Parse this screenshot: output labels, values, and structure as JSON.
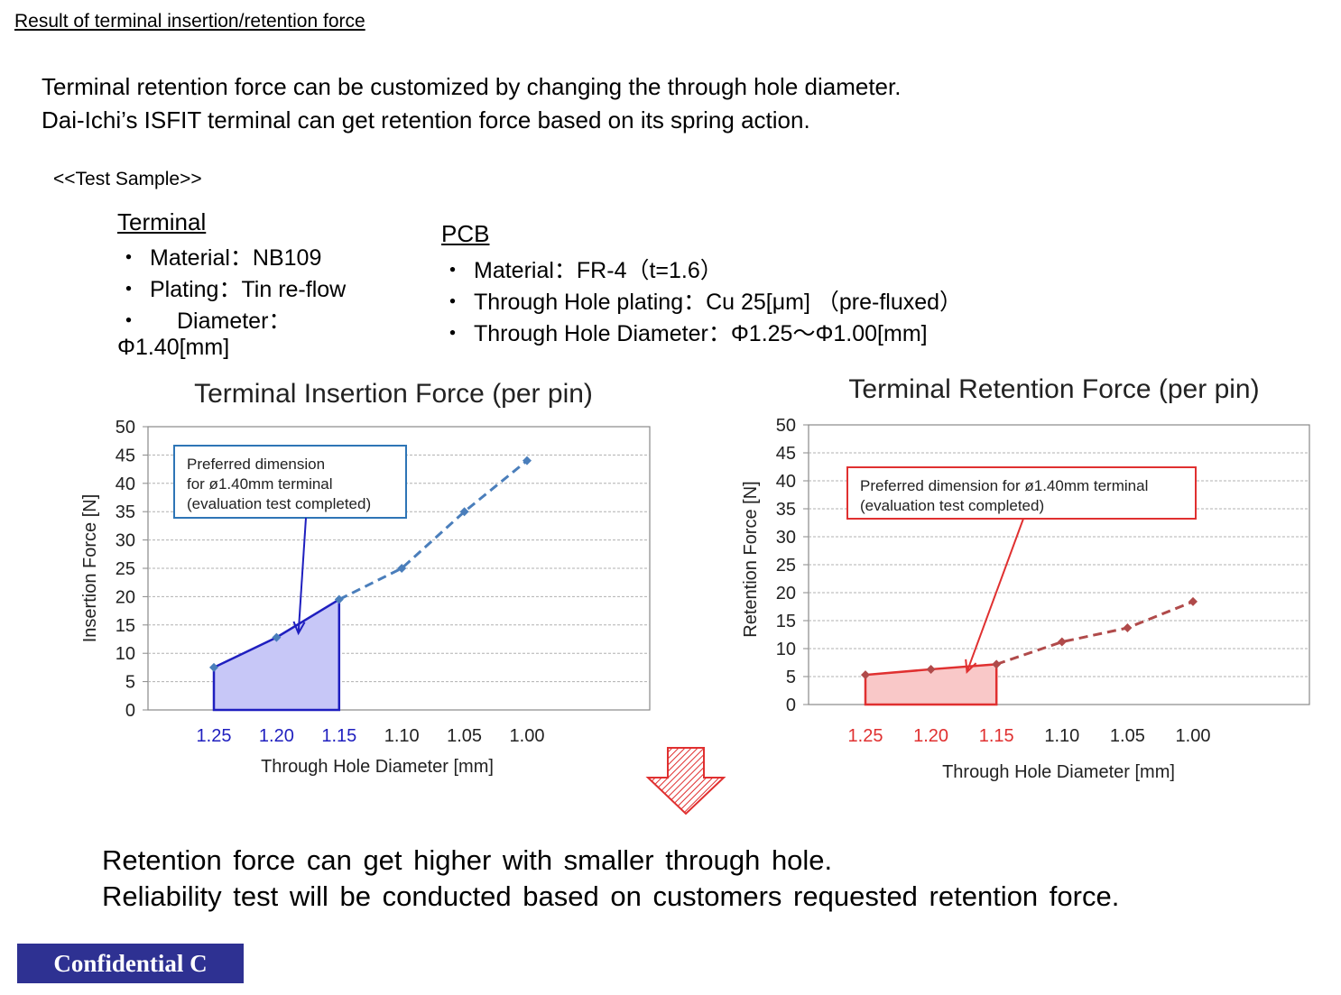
{
  "header": {
    "title": "Result of terminal insertion/retention force"
  },
  "intro": {
    "line1": "Terminal retention force can be customized by changing the through hole diameter.",
    "line2": "Dai-Ichi’s ISFIT terminal can get retention force based on its spring action."
  },
  "test_sample": {
    "label": "<<Test Sample>>",
    "terminal": {
      "heading": "Terminal",
      "bullet": "・",
      "material": "Material：NB109",
      "plating": "Plating：Tin re-flow",
      "diameter_a": "Diameter：",
      "diameter_b": "Φ1.40[mm]"
    },
    "pcb": {
      "heading": "PCB",
      "bullet": "・",
      "material": "Material：FR-4（t=1.6）",
      "plating": "Through Hole plating：Cu 25[μm] （pre-fluxed）",
      "diameter": "Through Hole Diameter：Φ1.25～Φ1.00[mm]"
    }
  },
  "chart_data": [
    {
      "type": "line",
      "title": "Terminal  Insertion  Force  (per pin)",
      "xlabel": "Through  Hole Diameter [mm]",
      "ylabel": "Insertion Force [N]",
      "categories": [
        "1.25",
        "1.20",
        "1.15",
        "1.10",
        "1.05",
        "1.00"
      ],
      "series": [
        {
          "values": [
            7.5,
            12.8,
            19.5,
            25.0,
            35.0,
            44.0
          ]
        }
      ],
      "ylim": [
        0,
        50
      ],
      "yticks": [
        "0",
        "5",
        "10",
        "15",
        "20",
        "25",
        "30",
        "35",
        "40",
        "45",
        "50"
      ],
      "grid": true,
      "highlighted_categories": [
        "1.25",
        "1.20",
        "1.15"
      ],
      "annotation": [
        "Preferred dimension",
        " for ø1.40mm terminal",
        "(evaluation test completed)"
      ],
      "colors": {
        "line": "#4a7ebb",
        "accent": "#1f1fbf",
        "fill": "#c7c7f7",
        "box": "#2e75b6"
      }
    },
    {
      "type": "line",
      "title": "Terminal  Retention  Force  (per pin)",
      "xlabel": "Through  Hole Diameter [mm]",
      "ylabel": "Retention Force [N]",
      "categories": [
        "1.25",
        "1.20",
        "1.15",
        "1.10",
        "1.05",
        "1.00"
      ],
      "series": [
        {
          "values": [
            5.3,
            6.3,
            7.2,
            11.2,
            13.7,
            18.4
          ]
        }
      ],
      "ylim": [
        0,
        50
      ],
      "yticks": [
        "0",
        "5",
        "10",
        "15",
        "20",
        "25",
        "30",
        "35",
        "40",
        "45",
        "50"
      ],
      "grid": true,
      "highlighted_categories": [
        "1.25",
        "1.20",
        "1.15"
      ],
      "annotation": [
        "Preferred dimension for ø1.40mm terminal",
        "(evaluation test completed)"
      ],
      "colors": {
        "line": "#b04a4a",
        "accent": "#e03030",
        "fill": "#f9c8c8",
        "box": "#e03030"
      }
    }
  ],
  "conclusion": {
    "line1": "Retention force can get higher with smaller through hole.",
    "line2": "Reliability test will be conducted based on customers requested retention force."
  },
  "footer": {
    "badge": "Confidential C",
    "badge_color": "#2e3192"
  },
  "icons": {
    "arrow": "down-arrow-icon",
    "arrow_color": "#e03030"
  }
}
